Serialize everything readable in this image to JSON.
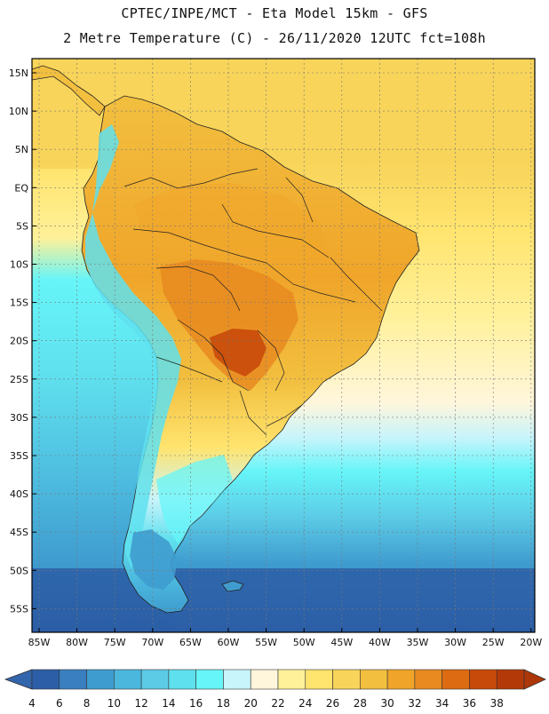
{
  "title_line1": "CPTEC/INPE/MCT -  Eta Model 15km - GFS",
  "title_line2": "2 Metre Temperature (C) - 26/11/2020 12UTC fct=108h",
  "lat_labels": [
    "15N",
    "10N",
    "5N",
    "EQ",
    "5S",
    "10S",
    "15S",
    "20S",
    "25S",
    "30S",
    "35S",
    "40S",
    "45S",
    "50S",
    "55S"
  ],
  "lon_labels": [
    "85W",
    "80W",
    "75W",
    "70W",
    "65W",
    "60W",
    "55W",
    "50W",
    "45W",
    "40W",
    "35W",
    "30W",
    "25W",
    "20W"
  ],
  "colorbar": {
    "labels": [
      "4",
      "6",
      "8",
      "10",
      "12",
      "14",
      "16",
      "18",
      "20",
      "22",
      "24",
      "26",
      "28",
      "30",
      "32",
      "34",
      "36",
      "38"
    ],
    "colors": [
      "#2b5ea6",
      "#3a7fc0",
      "#3f9ccf",
      "#4bb7dd",
      "#5ccbe6",
      "#5fe0ee",
      "#66f5f8",
      "#c8f4fb",
      "#fff6dc",
      "#fff19a",
      "#ffe46e",
      "#f8d45a",
      "#f2bf3f",
      "#f0a52a",
      "#e88a20",
      "#dd6b12",
      "#c84a0a",
      "#b33a08"
    ],
    "low_color": "#3265ab",
    "high_color": "#ad3707"
  }
}
